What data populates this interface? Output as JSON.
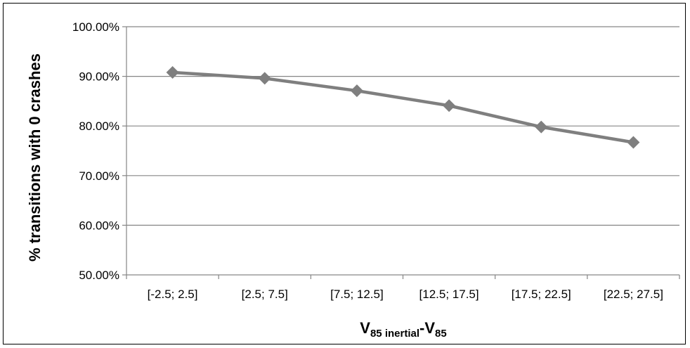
{
  "chart_data": {
    "type": "line",
    "title": "",
    "xlabel": {
      "main": "V",
      "sub1": "85 inertial",
      "sep": "-V",
      "sub2": "85"
    },
    "ylabel": "% transitions with 0 crashes",
    "categories": [
      "[-2.5; 2.5]",
      "[2.5; 7.5]",
      "[7.5; 12.5]",
      "[12.5; 17.5]",
      "[17.5; 22.5]",
      "[22.5; 27.5]"
    ],
    "series": [
      {
        "values": [
          0.908,
          0.896,
          0.871,
          0.841,
          0.798,
          0.767
        ]
      }
    ],
    "ylim": [
      0.5,
      1.0
    ],
    "yticks": [
      {
        "value": 1.0,
        "label": "100.00%"
      },
      {
        "value": 0.9,
        "label": "90.00%"
      },
      {
        "value": 0.8,
        "label": "80.00%"
      },
      {
        "value": 0.7,
        "label": "70.00%"
      },
      {
        "value": 0.6,
        "label": "60.00%"
      },
      {
        "value": 0.5,
        "label": "50.00%"
      }
    ],
    "grid": true,
    "legend": "none",
    "colors": {
      "line": "#7f7f7f",
      "grid": "#868686",
      "axis": "#868686"
    }
  }
}
